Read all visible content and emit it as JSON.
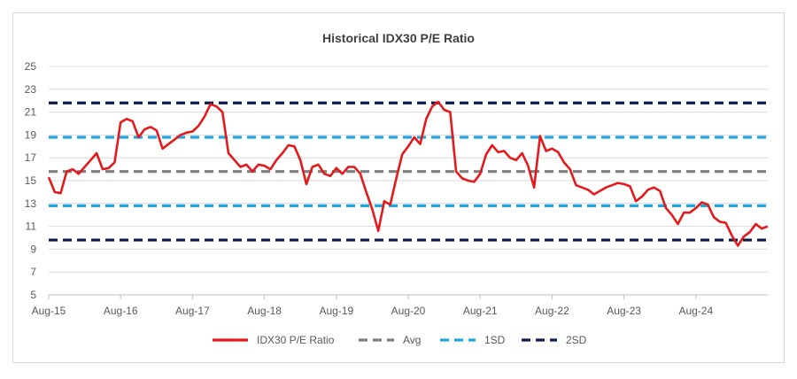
{
  "chart_data": {
    "type": "line",
    "title": "Historical IDX30 P/E Ratio",
    "ylim": [
      5,
      25
    ],
    "yticks": [
      5,
      7,
      9,
      11,
      13,
      15,
      17,
      19,
      21,
      23,
      25
    ],
    "xlim": [
      "2015-08",
      "2025-08"
    ],
    "xticks": [
      "Aug-15",
      "Aug-16",
      "Aug-17",
      "Aug-18",
      "Aug-19",
      "Aug-20",
      "Aug-21",
      "Aug-22",
      "Aug-23",
      "Aug-24"
    ],
    "grid": true,
    "legend_position": "bottom",
    "series": [
      {
        "name": "IDX30 P/E Ratio",
        "color": "#e31a1c",
        "style": "solid",
        "points": [
          [
            "2015-08",
            15.3
          ],
          [
            "2015-09",
            14.0
          ],
          [
            "2015-10",
            13.9
          ],
          [
            "2015-11",
            15.8
          ],
          [
            "2015-12",
            16.0
          ],
          [
            "2016-01",
            15.6
          ],
          [
            "2016-02",
            16.2
          ],
          [
            "2016-03",
            16.8
          ],
          [
            "2016-04",
            17.4
          ],
          [
            "2016-05",
            16.0
          ],
          [
            "2016-06",
            16.1
          ],
          [
            "2016-07",
            16.6
          ],
          [
            "2016-08",
            20.1
          ],
          [
            "2016-09",
            20.4
          ],
          [
            "2016-10",
            20.2
          ],
          [
            "2016-11",
            18.8
          ],
          [
            "2016-12",
            19.5
          ],
          [
            "2017-01",
            19.7
          ],
          [
            "2017-02",
            19.4
          ],
          [
            "2017-03",
            17.8
          ],
          [
            "2017-04",
            18.2
          ],
          [
            "2017-05",
            18.6
          ],
          [
            "2017-06",
            19.0
          ],
          [
            "2017-07",
            19.2
          ],
          [
            "2017-08",
            19.3
          ],
          [
            "2017-09",
            19.8
          ],
          [
            "2017-10",
            20.6
          ],
          [
            "2017-11",
            21.7
          ],
          [
            "2017-12",
            21.5
          ],
          [
            "2018-01",
            21.0
          ],
          [
            "2018-02",
            17.4
          ],
          [
            "2018-03",
            16.8
          ],
          [
            "2018-04",
            16.2
          ],
          [
            "2018-05",
            16.4
          ],
          [
            "2018-06",
            15.8
          ],
          [
            "2018-07",
            16.4
          ],
          [
            "2018-08",
            16.3
          ],
          [
            "2018-09",
            16.0
          ],
          [
            "2018-10",
            16.8
          ],
          [
            "2018-11",
            17.4
          ],
          [
            "2018-12",
            18.1
          ],
          [
            "2019-01",
            18.0
          ],
          [
            "2019-02",
            16.8
          ],
          [
            "2019-03",
            14.7
          ],
          [
            "2019-04",
            16.2
          ],
          [
            "2019-05",
            16.4
          ],
          [
            "2019-06",
            15.6
          ],
          [
            "2019-07",
            15.4
          ],
          [
            "2019-08",
            16.1
          ],
          [
            "2019-09",
            15.6
          ],
          [
            "2019-10",
            16.2
          ],
          [
            "2019-11",
            16.2
          ],
          [
            "2019-12",
            15.6
          ],
          [
            "2020-01",
            14.0
          ],
          [
            "2020-02",
            12.5
          ],
          [
            "2020-03",
            10.6
          ],
          [
            "2020-04",
            13.2
          ],
          [
            "2020-05",
            12.9
          ],
          [
            "2020-06",
            15.2
          ],
          [
            "2020-07",
            17.3
          ],
          [
            "2020-08",
            18.0
          ],
          [
            "2020-09",
            18.8
          ],
          [
            "2020-10",
            18.2
          ],
          [
            "2020-11",
            20.4
          ],
          [
            "2020-12",
            21.5
          ],
          [
            "2021-01",
            21.9
          ],
          [
            "2021-02",
            21.2
          ],
          [
            "2021-03",
            21.0
          ],
          [
            "2021-04",
            15.8
          ],
          [
            "2021-05",
            15.2
          ],
          [
            "2021-06",
            15.0
          ],
          [
            "2021-07",
            14.9
          ],
          [
            "2021-08",
            15.6
          ],
          [
            "2021-09",
            17.3
          ],
          [
            "2021-10",
            18.1
          ],
          [
            "2021-11",
            17.5
          ],
          [
            "2021-12",
            17.6
          ],
          [
            "2022-01",
            17.0
          ],
          [
            "2022-02",
            16.8
          ],
          [
            "2022-03",
            17.4
          ],
          [
            "2022-04",
            16.3
          ],
          [
            "2022-05",
            14.4
          ],
          [
            "2022-06",
            18.9
          ],
          [
            "2022-07",
            17.6
          ],
          [
            "2022-08",
            17.8
          ],
          [
            "2022-09",
            17.5
          ],
          [
            "2022-10",
            16.6
          ],
          [
            "2022-11",
            16.0
          ],
          [
            "2022-12",
            14.6
          ],
          [
            "2023-01",
            14.4
          ],
          [
            "2023-02",
            14.2
          ],
          [
            "2023-03",
            13.8
          ],
          [
            "2023-04",
            14.1
          ],
          [
            "2023-05",
            14.4
          ],
          [
            "2023-06",
            14.6
          ],
          [
            "2023-07",
            14.8
          ],
          [
            "2023-08",
            14.7
          ],
          [
            "2023-09",
            14.5
          ],
          [
            "2023-10",
            13.2
          ],
          [
            "2023-11",
            13.6
          ],
          [
            "2023-12",
            14.2
          ],
          [
            "2024-01",
            14.4
          ],
          [
            "2024-02",
            14.1
          ],
          [
            "2024-03",
            12.6
          ],
          [
            "2024-04",
            12.0
          ],
          [
            "2024-05",
            11.2
          ],
          [
            "2024-06",
            12.2
          ],
          [
            "2024-07",
            12.2
          ],
          [
            "2024-08",
            12.6
          ],
          [
            "2024-09",
            13.1
          ],
          [
            "2024-10",
            12.9
          ],
          [
            "2024-11",
            11.8
          ],
          [
            "2024-12",
            11.4
          ],
          [
            "2025-01",
            11.3
          ],
          [
            "2025-02",
            10.2
          ],
          [
            "2025-03",
            9.3
          ],
          [
            "2025-04",
            10.1
          ],
          [
            "2025-05",
            10.5
          ],
          [
            "2025-06",
            11.2
          ],
          [
            "2025-07",
            10.8
          ],
          [
            "2025-08",
            11.0
          ]
        ]
      },
      {
        "name": "Avg",
        "color": "#7f7f7f",
        "style": "dashed",
        "value": 15.8
      },
      {
        "name": "1SD",
        "color": "#1fa8e0",
        "style": "dashed",
        "value": 18.8
      },
      {
        "name": "2SD",
        "color": "#0d1b4c",
        "style": "dashed",
        "value": 21.8
      },
      {
        "name": "",
        "color": "#1fa8e0",
        "style": "dashed",
        "value": 12.8
      },
      {
        "name": "",
        "color": "#0d1b4c",
        "style": "dashed",
        "value": 9.8
      }
    ]
  }
}
